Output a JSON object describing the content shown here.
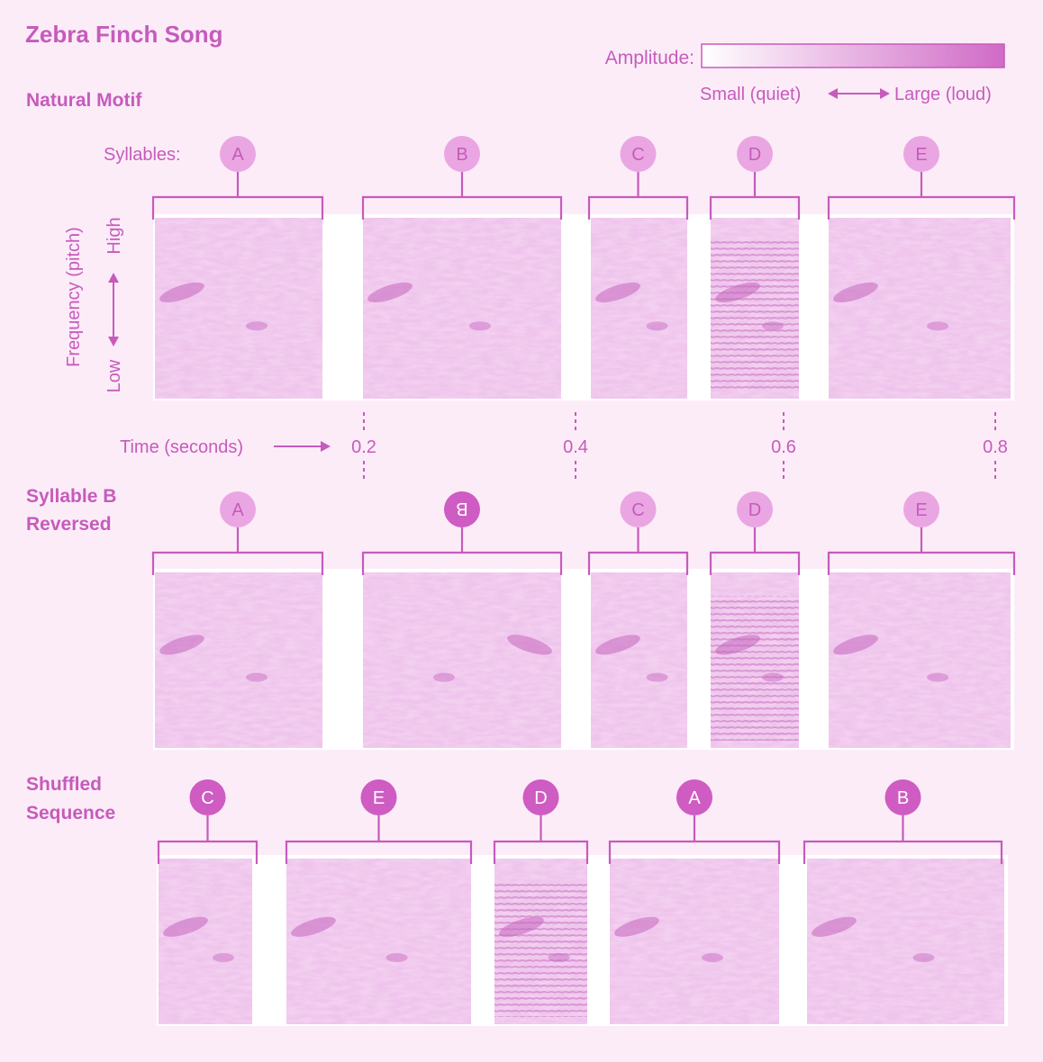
{
  "title": "Zebra Finch Song",
  "legend": {
    "label": "Amplitude:",
    "small": "Small (quiet)",
    "large": "Large (loud)",
    "gradient_colors": [
      "#ffffff",
      "#d06ac6"
    ]
  },
  "axes": {
    "syllables_label": "Syllables:",
    "freq_label": "Frequency (pitch)",
    "high": "High",
    "low": "Low",
    "time_label": "Time (seconds)",
    "ticks": [
      "0.2",
      "0.4",
      "0.6",
      "0.8"
    ]
  },
  "colors": {
    "accent": "#c65bbc",
    "light_circle": "#eaa6e2",
    "dark_circle": "#cf5cc2",
    "spectrogram": "#d07ccb"
  },
  "panels": [
    {
      "label_lines": [
        "Natural Motif"
      ],
      "syllables": [
        {
          "letter": "A",
          "highlight": false,
          "reversed": false
        },
        {
          "letter": "B",
          "highlight": false,
          "reversed": false
        },
        {
          "letter": "C",
          "highlight": false,
          "reversed": false
        },
        {
          "letter": "D",
          "highlight": false,
          "reversed": false
        },
        {
          "letter": "E",
          "highlight": false,
          "reversed": false
        }
      ]
    },
    {
      "label_lines": [
        "Syllable B",
        "Reversed"
      ],
      "syllables": [
        {
          "letter": "A",
          "highlight": false,
          "reversed": false
        },
        {
          "letter": "B",
          "highlight": true,
          "reversed": true
        },
        {
          "letter": "C",
          "highlight": false,
          "reversed": false
        },
        {
          "letter": "D",
          "highlight": false,
          "reversed": false
        },
        {
          "letter": "E",
          "highlight": false,
          "reversed": false
        }
      ]
    },
    {
      "label_lines": [
        "Shuffled",
        "Sequence"
      ],
      "syllables": [
        {
          "letter": "C",
          "highlight": true,
          "reversed": false
        },
        {
          "letter": "E",
          "highlight": true,
          "reversed": false
        },
        {
          "letter": "D",
          "highlight": true,
          "reversed": false
        },
        {
          "letter": "A",
          "highlight": true,
          "reversed": false
        },
        {
          "letter": "B",
          "highlight": true,
          "reversed": false
        }
      ]
    }
  ]
}
